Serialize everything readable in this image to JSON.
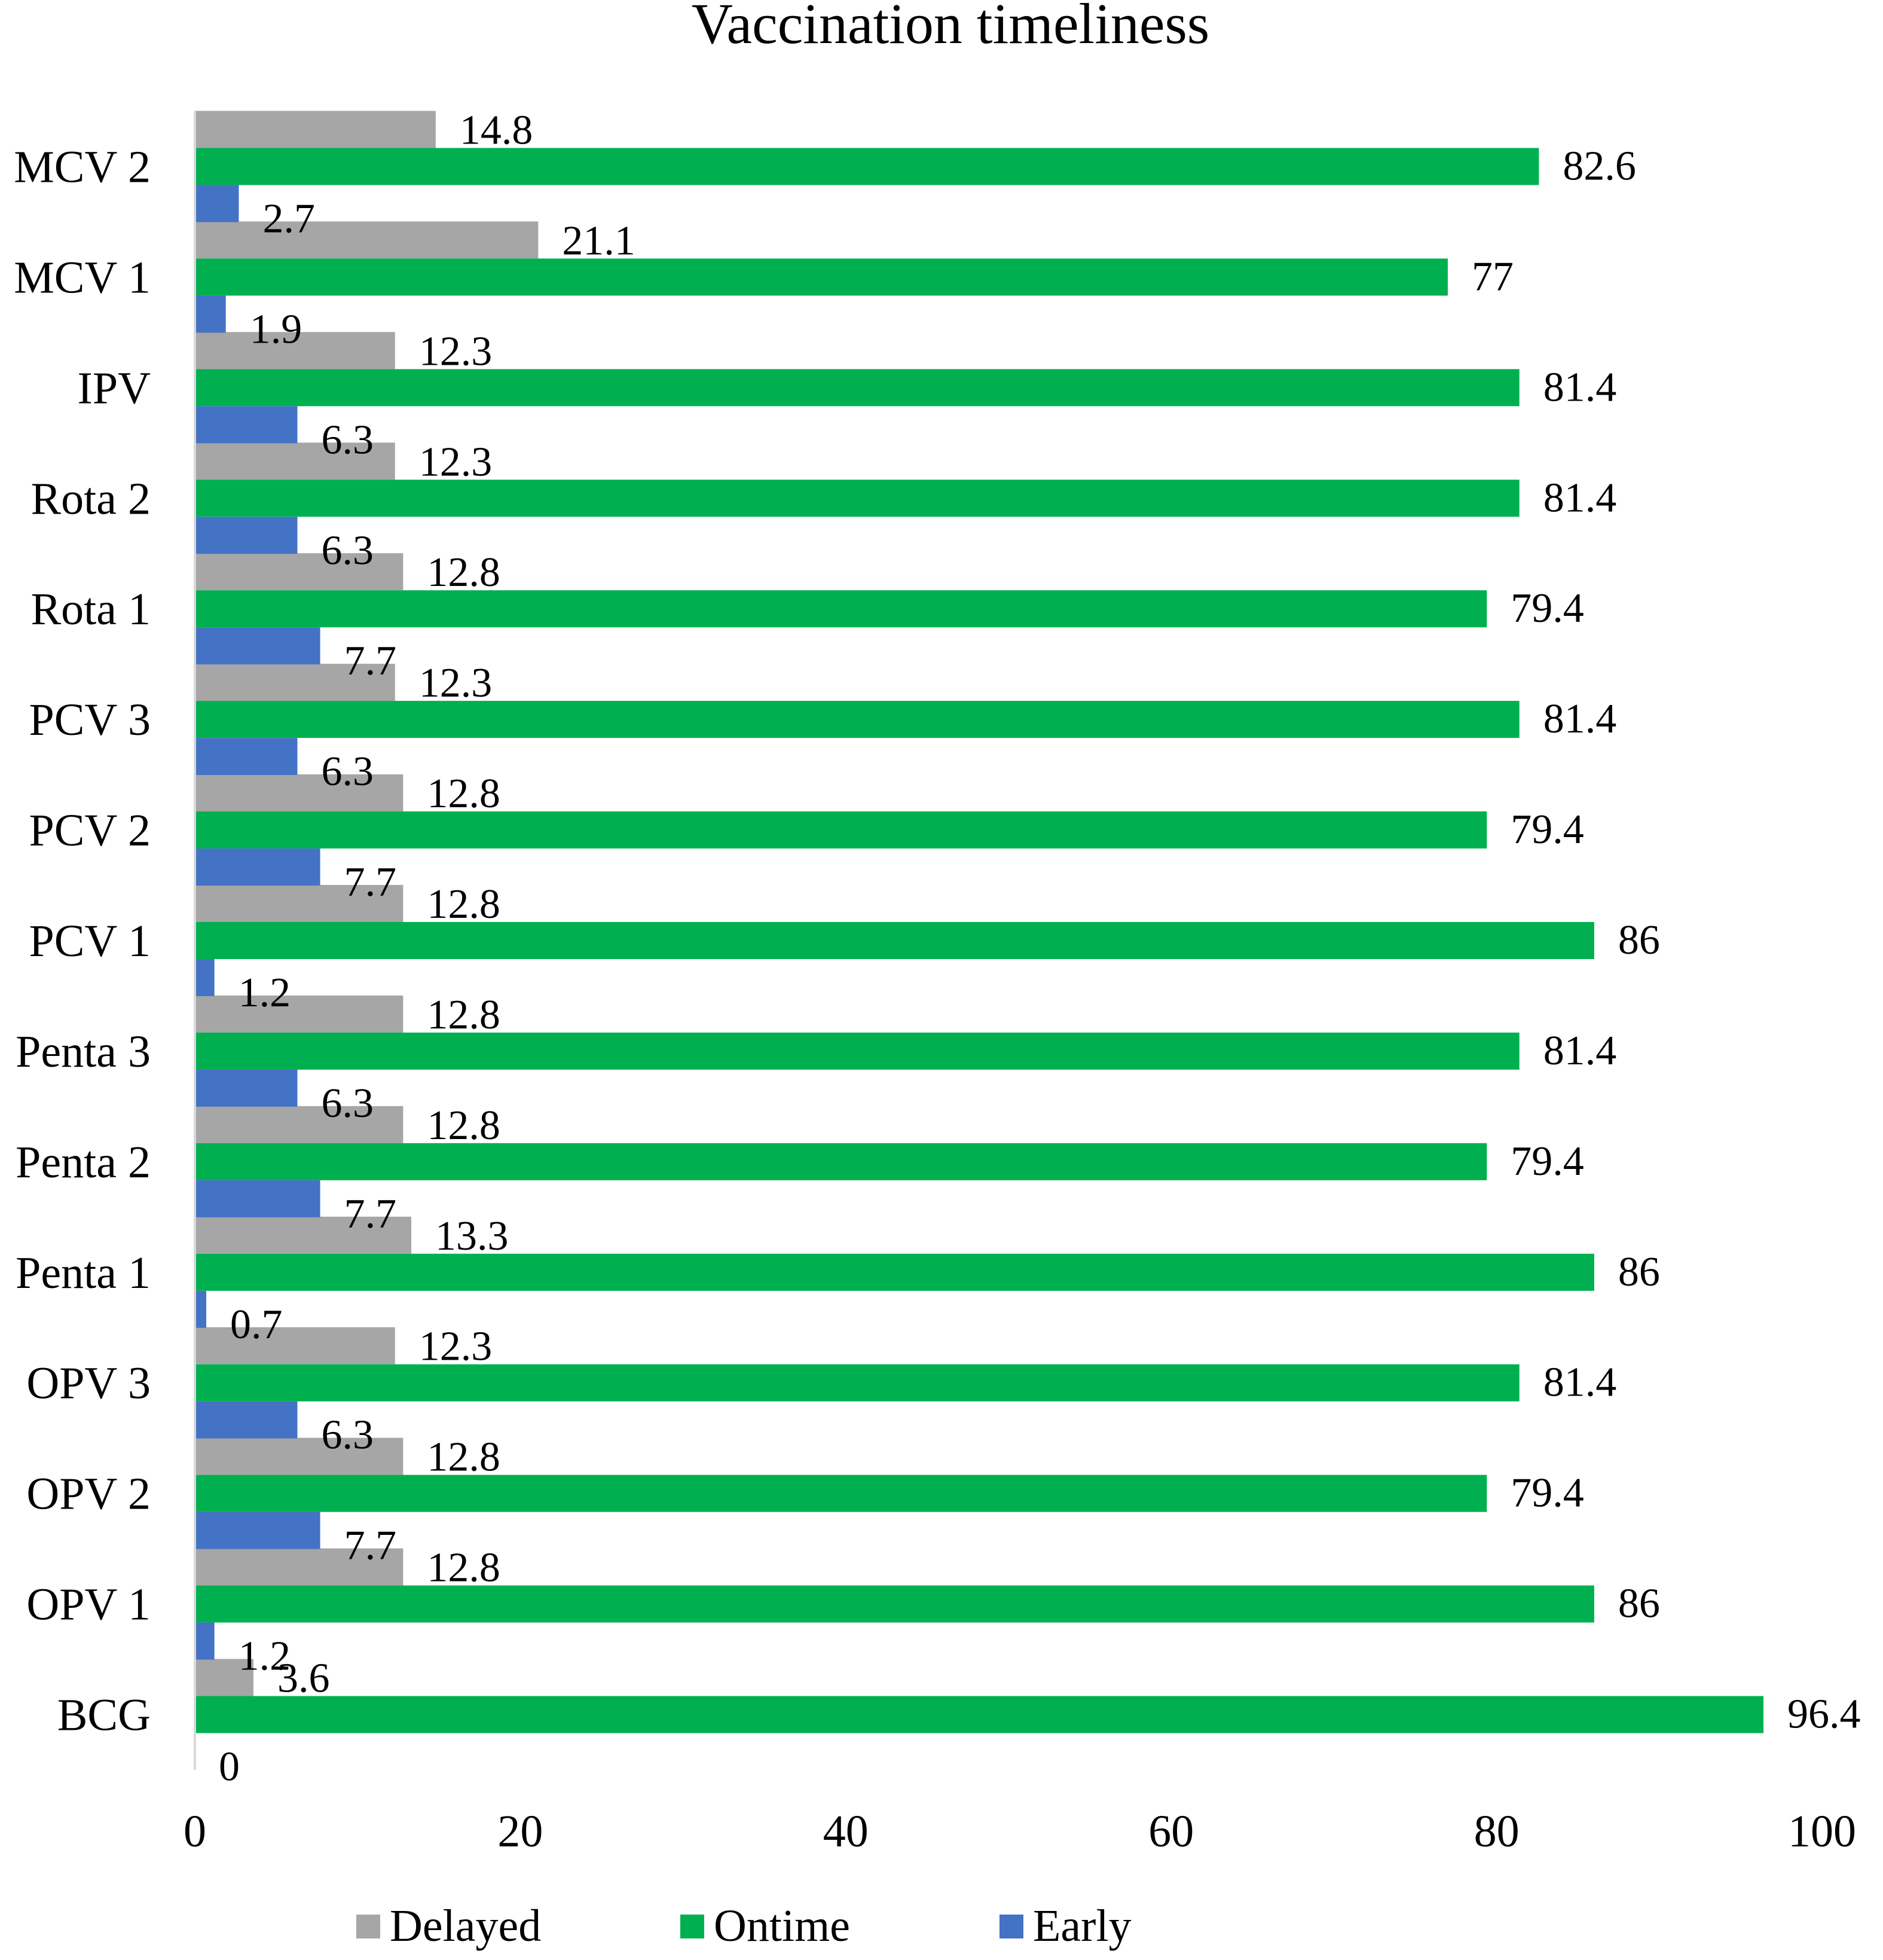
{
  "chart_data": {
    "type": "bar",
    "orientation": "horizontal",
    "title": "Vaccination timeliness",
    "xlabel": "",
    "ylabel": "",
    "xlim": [
      0,
      100
    ],
    "xticks": [
      0,
      20,
      40,
      60,
      80,
      100
    ],
    "grid": false,
    "legend_position": "bottom",
    "categories": [
      "BCG",
      "OPV 1",
      "OPV 2",
      "OPV 3",
      "Penta 1",
      "Penta 2",
      "Penta 3",
      "PCV 1",
      "PCV 2",
      "PCV 3",
      "Rota 1",
      "Rota 2",
      "IPV",
      "MCV 1",
      "MCV 2"
    ],
    "series": [
      {
        "name": "Delayed",
        "color": "#a6a6a6",
        "values": [
          3.6,
          12.8,
          12.8,
          12.3,
          13.3,
          12.8,
          12.8,
          12.8,
          12.8,
          12.3,
          12.8,
          12.3,
          12.3,
          21.1,
          14.8
        ]
      },
      {
        "name": "Ontime",
        "color": "#00b050",
        "values": [
          96.4,
          86,
          79.4,
          81.4,
          86,
          79.4,
          81.4,
          86,
          79.4,
          81.4,
          79.4,
          81.4,
          81.4,
          77,
          82.6
        ]
      },
      {
        "name": "Early",
        "color": "#4472c4",
        "values": [
          0,
          1.2,
          7.7,
          6.3,
          0.7,
          7.7,
          6.3,
          1.2,
          7.7,
          6.3,
          7.7,
          6.3,
          6.3,
          1.9,
          2.7
        ]
      }
    ]
  }
}
